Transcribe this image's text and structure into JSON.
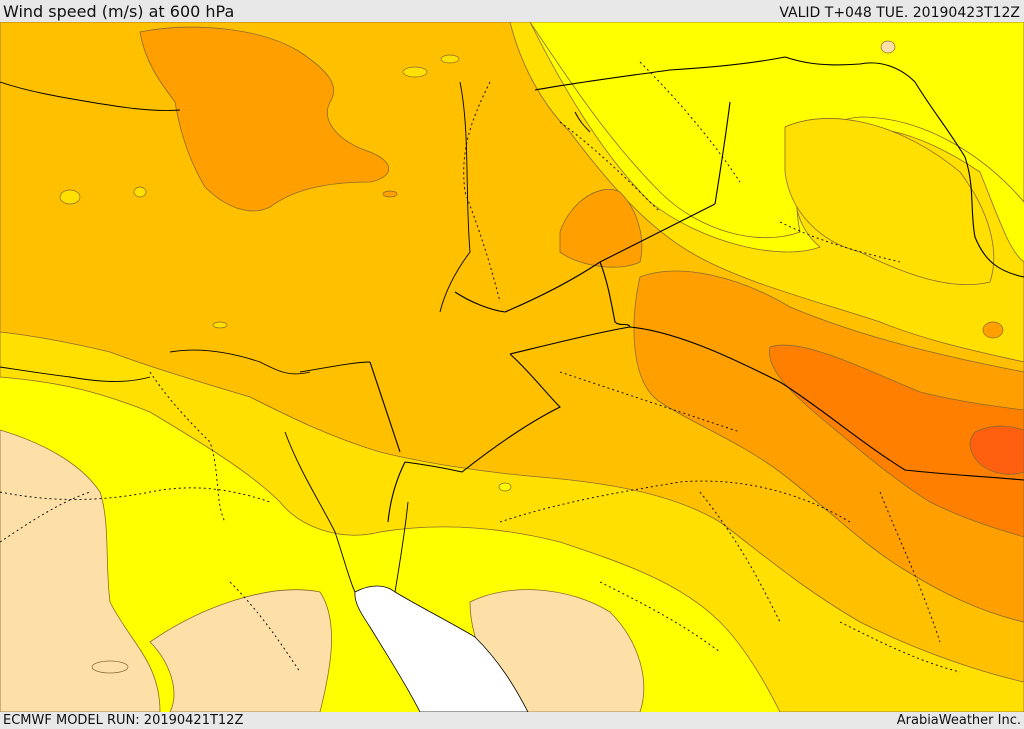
{
  "header": {
    "title": "Wind speed (m/s) at 600 hPa",
    "valid": "VALID T+048 TUE. 20190423T12Z"
  },
  "footer": {
    "model_run": "ECMWF MODEL RUN: 20190421T12Z",
    "credit": "ArabiaWeather Inc."
  },
  "colors": {
    "band_lowest": "#fde0a8",
    "band_yellow": "#ffff00",
    "band_gold": "#ffe000",
    "band_amber": "#ffc000",
    "band_orange": "#ffa000",
    "band_dark_orange": "#ff8000",
    "band_max": "#ff6010",
    "sea_masked": "#ffffff",
    "contour_line": "#8a6a30",
    "border_line": "#000000"
  }
}
